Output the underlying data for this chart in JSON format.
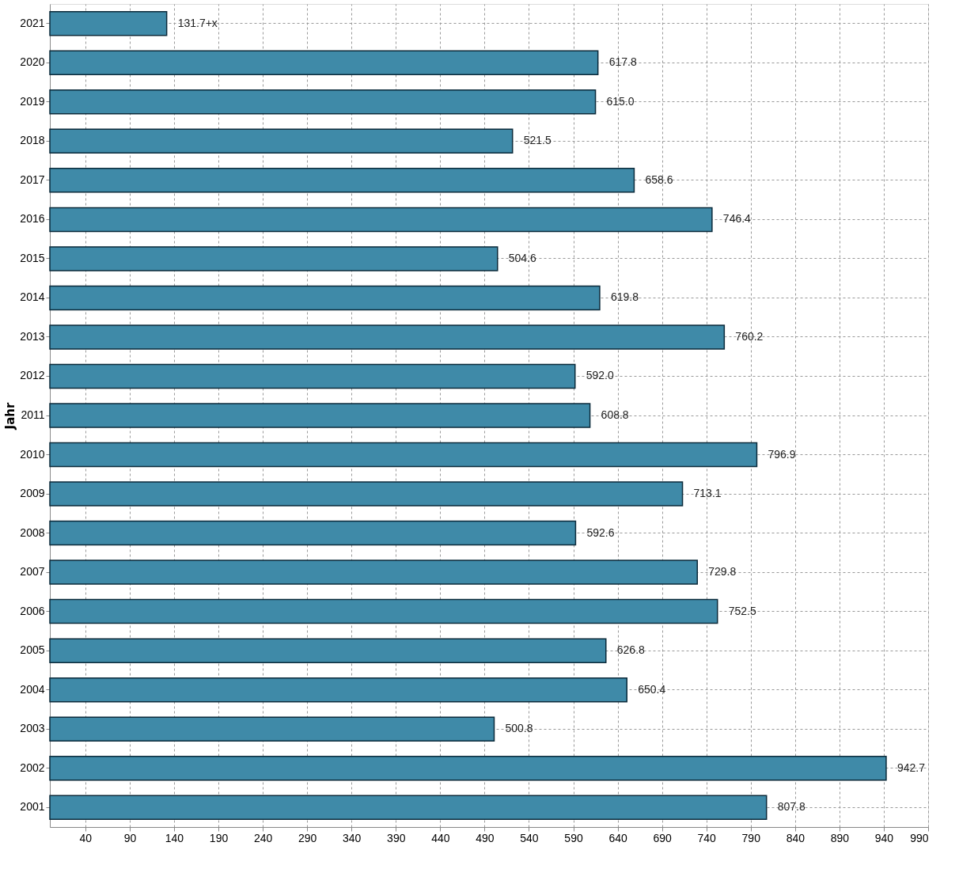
{
  "chart_data": {
    "type": "bar",
    "orientation": "horizontal",
    "ylabel": "Jahr",
    "categories": [
      "2021",
      "2020",
      "2019",
      "2018",
      "2017",
      "2016",
      "2015",
      "2014",
      "2013",
      "2012",
      "2011",
      "2010",
      "2009",
      "2008",
      "2007",
      "2006",
      "2005",
      "2004",
      "2003",
      "2002",
      "2001"
    ],
    "values": [
      131.7,
      617.8,
      615.0,
      521.5,
      658.6,
      746.4,
      504.6,
      619.8,
      760.2,
      592.0,
      608.8,
      796.9,
      713.1,
      592.6,
      729.8,
      752.5,
      626.8,
      650.4,
      500.8,
      942.7,
      807.8
    ],
    "value_labels": [
      "131.7+x",
      "617.8",
      "615.0",
      "521.5",
      "658.6",
      "746.4",
      "504.6",
      "619.8",
      "760.2",
      "592.0",
      "608.8",
      "796.9",
      "713.1",
      "592.6",
      "729.8",
      "752.5",
      "626.8",
      "650.4",
      "500.8",
      "942.7",
      "807.8"
    ],
    "color": "#3f8aa8",
    "xlim": [
      0,
      990
    ],
    "xticks": [
      40,
      90,
      140,
      190,
      240,
      290,
      340,
      390,
      440,
      490,
      540,
      590,
      640,
      690,
      740,
      790,
      840,
      890,
      940,
      990
    ],
    "grid": true
  }
}
